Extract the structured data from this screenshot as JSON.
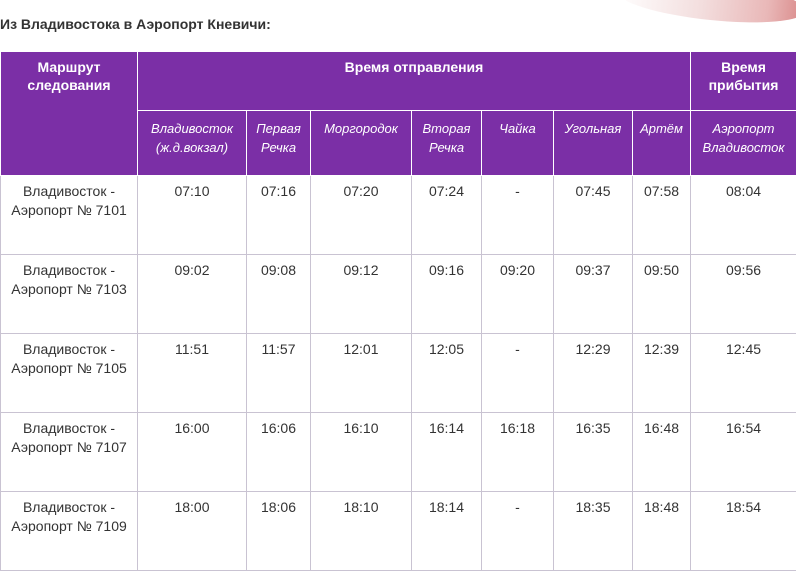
{
  "heading": "Из Владивостока в Аэропорт Кневичи:",
  "table": {
    "headers": {
      "route": "Маршрут следования",
      "departure": "Время отправления",
      "arrival": "Время прибытия"
    },
    "stops": [
      "Владивосток (ж.д.вокзал)",
      "Первая Речка",
      "Моргородок",
      "Вторая Речка",
      "Чайка",
      "Угольная",
      "Артём",
      "Аэропорт Владивосток"
    ],
    "rows": [
      {
        "route": "Владивосток - Аэропорт № 7101",
        "times": [
          "07:10",
          "07:16",
          "07:20",
          "07:24",
          "-",
          "07:45",
          "07:58",
          "08:04"
        ]
      },
      {
        "route": "Владивосток - Аэропорт № 7103",
        "times": [
          "09:02",
          "09:08",
          "09:12",
          "09:16",
          "09:20",
          "09:37",
          "09:50",
          "09:56"
        ]
      },
      {
        "route": "Владивосток - Аэропорт № 7105",
        "times": [
          "11:51",
          "11:57",
          "12:01",
          "12:05",
          "-",
          "12:29",
          "12:39",
          "12:45"
        ]
      },
      {
        "route": "Владивосток - Аэропорт № 7107",
        "times": [
          "16:00",
          "16:06",
          "16:10",
          "16:14",
          "16:18",
          "16:35",
          "16:48",
          "16:54"
        ]
      },
      {
        "route": "Владивосток - Аэропорт № 7109",
        "times": [
          "18:00",
          "18:06",
          "18:10",
          "18:14",
          "-",
          "18:35",
          "18:48",
          "18:54"
        ]
      }
    ]
  },
  "colors": {
    "header_bg": "#7b2fa6",
    "header_text": "#ffffff",
    "cell_border": "#c9c3d2",
    "text": "#333333"
  }
}
